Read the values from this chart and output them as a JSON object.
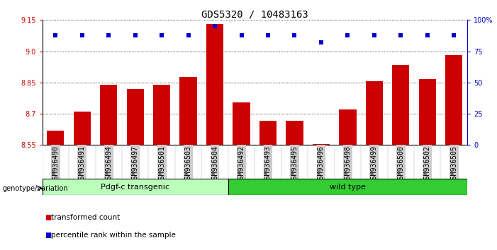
{
  "title": "GDS5320 / 10483163",
  "samples": [
    "GSM936490",
    "GSM936491",
    "GSM936494",
    "GSM936497",
    "GSM936501",
    "GSM936503",
    "GSM936504",
    "GSM936492",
    "GSM936493",
    "GSM936495",
    "GSM936496",
    "GSM936498",
    "GSM936499",
    "GSM936500",
    "GSM936502",
    "GSM936505"
  ],
  "bar_values": [
    8.62,
    8.71,
    8.84,
    8.82,
    8.84,
    8.875,
    9.13,
    8.755,
    8.665,
    8.665,
    8.555,
    8.72,
    8.855,
    8.935,
    8.865,
    8.98
  ],
  "percentile_values": [
    88,
    88,
    88,
    88,
    88,
    88,
    95,
    88,
    88,
    88,
    82,
    88,
    88,
    88,
    88,
    88
  ],
  "ylim_left": [
    8.55,
    9.15
  ],
  "ylim_right": [
    0,
    100
  ],
  "yticks_left": [
    8.55,
    8.7,
    8.85,
    9.0,
    9.15
  ],
  "yticks_right": [
    0,
    25,
    50,
    75,
    100
  ],
  "ytick_labels_right": [
    "0",
    "25",
    "50",
    "75",
    "100%"
  ],
  "bar_color": "#cc0000",
  "percentile_color": "#0000cc",
  "group1_label": "Pdgf-c transgenic",
  "group2_label": "wild type",
  "group1_count": 7,
  "group2_count": 9,
  "group1_color": "#bbffbb",
  "group2_color": "#33cc33",
  "xlabel_left": "genotype/variation",
  "legend1": "transformed count",
  "legend2": "percentile rank within the sample",
  "tick_label_bg": "#cccccc",
  "spine_color": "#000000",
  "grid_color": "#000000",
  "title_fontsize": 10,
  "tick_fontsize": 7,
  "bar_bottom": 8.55
}
